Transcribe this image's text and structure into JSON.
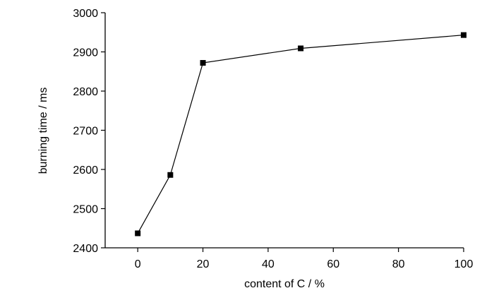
{
  "chart_data": {
    "type": "line",
    "title": "",
    "xlabel": "content of C / %",
    "ylabel": "burning time / ms",
    "xlim": [
      -10,
      100
    ],
    "ylim": [
      2400,
      3000
    ],
    "x_ticks": [
      0,
      20,
      40,
      60,
      80,
      100
    ],
    "y_ticks": [
      2400,
      2500,
      2600,
      2700,
      2800,
      2900,
      3000
    ],
    "grid": false,
    "legend": "none",
    "marker": "square",
    "line_color": "#000000",
    "series": [
      {
        "x": [
          0,
          10,
          20,
          50,
          100
        ],
        "values": [
          2437,
          2586,
          2872,
          2909,
          2943
        ]
      }
    ]
  }
}
